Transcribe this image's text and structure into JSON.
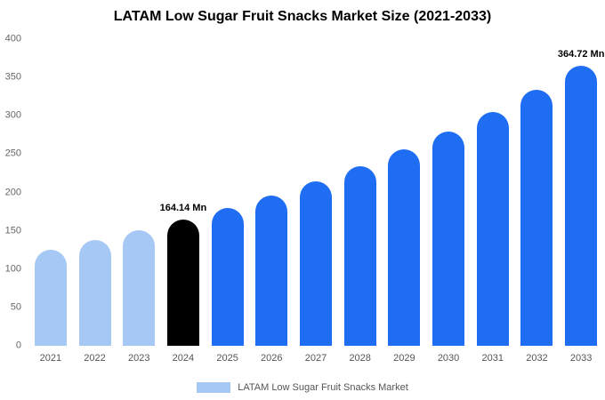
{
  "title": "LATAM Low Sugar Fruit Snacks Market Size (2021-2033)",
  "legend": {
    "label": "LATAM Low Sugar Fruit Snacks Market",
    "swatch_color": "#a6c8f5"
  },
  "colors": {
    "light_blue": "#a6c8f5",
    "highlight_black": "#000000",
    "blue": "#1f6df2",
    "tick_text": "#666666",
    "axis_text": "#555555"
  },
  "chart_data": {
    "type": "bar",
    "title": "LATAM Low Sugar Fruit Snacks Market Size (2021-2033)",
    "xlabel": "",
    "ylabel": "",
    "unit": "Mn",
    "categories": [
      "2021",
      "2022",
      "2023",
      "2024",
      "2025",
      "2026",
      "2027",
      "2028",
      "2029",
      "2030",
      "2031",
      "2032",
      "2033"
    ],
    "values": [
      125.8,
      137.5,
      150.2,
      164.14,
      179.4,
      196.0,
      214.2,
      234.1,
      255.8,
      279.6,
      305.5,
      333.9,
      364.72
    ],
    "bar_colors": [
      "#a6c8f5",
      "#a6c8f5",
      "#a6c8f5",
      "#000000",
      "#1f6df2",
      "#1f6df2",
      "#1f6df2",
      "#1f6df2",
      "#1f6df2",
      "#1f6df2",
      "#1f6df2",
      "#1f6df2",
      "#1f6df2"
    ],
    "value_labels": [
      "",
      "",
      "",
      "164.14 Mn",
      "",
      "",
      "",
      "",
      "",
      "",
      "",
      "",
      "364.72 Mn"
    ],
    "ylim": [
      0,
      400
    ],
    "y_ticks": [
      0,
      50,
      100,
      150,
      200,
      250,
      300,
      350,
      400
    ],
    "grid": false,
    "legend_position": "bottom",
    "legend_entries": [
      "LATAM Low Sugar Fruit Snacks Market"
    ]
  }
}
